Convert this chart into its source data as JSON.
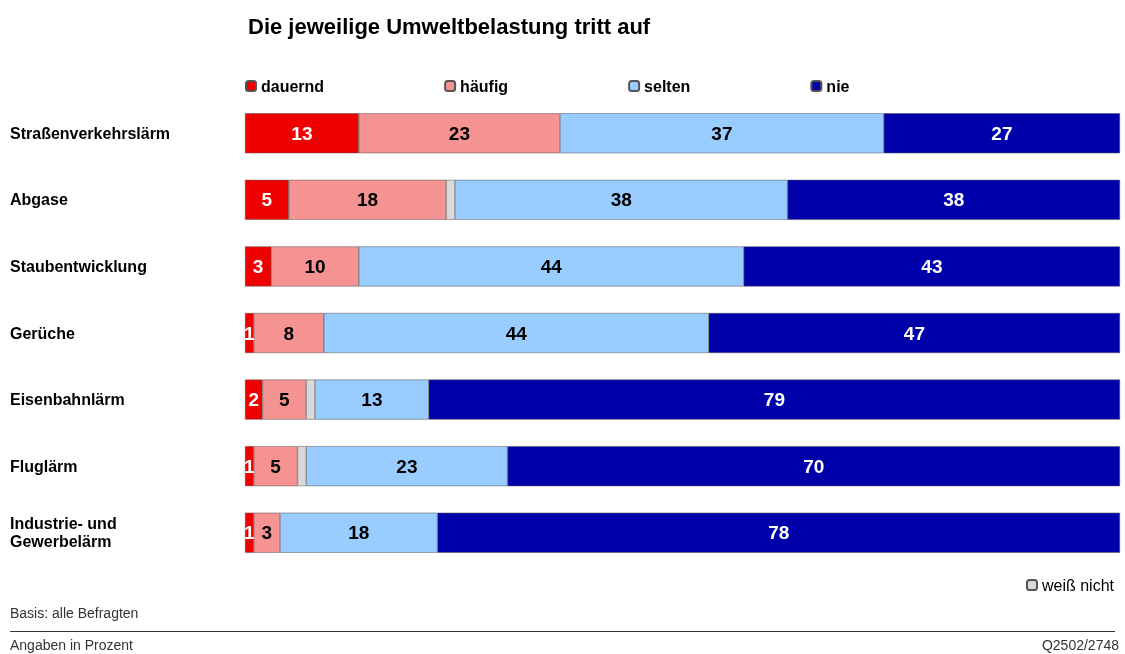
{
  "chart_data": {
    "type": "bar",
    "orientation": "horizontal",
    "stacked": true,
    "title": "Die jeweilige Umweltbelastung tritt auf",
    "categories": [
      "Straßenverkehrslärm",
      "Abgase",
      "Staubentwicklung",
      "Gerüche",
      "Eisenbahnlärm",
      "Fluglärm",
      "Industrie- und Gewerbelärm"
    ],
    "series": [
      {
        "name": "dauernd",
        "color": "#ee0000",
        "values": [
          13,
          5,
          3,
          1,
          2,
          1,
          1
        ],
        "value_labels": [
          "13",
          "5",
          "3",
          "1",
          "2",
          "1",
          "1"
        ]
      },
      {
        "name": "häufig",
        "color": "#f59393",
        "values": [
          23,
          18,
          10,
          8,
          5,
          5,
          3
        ],
        "value_labels": [
          "23",
          "18",
          "10",
          "8",
          "5",
          "5",
          "3"
        ]
      },
      {
        "name": "weiß nicht",
        "color": "#d9d9d9",
        "values": [
          null,
          1,
          null,
          null,
          1,
          1,
          null
        ],
        "value_labels": [
          null,
          null,
          null,
          null,
          null,
          null,
          null
        ]
      },
      {
        "name": "selten",
        "color": "#99ccff",
        "values": [
          37,
          38,
          44,
          44,
          13,
          23,
          18
        ],
        "value_labels": [
          "37",
          "38",
          "44",
          "44",
          "13",
          "23",
          "18"
        ]
      },
      {
        "name": "nie",
        "color": "#0000aa",
        "values": [
          27,
          38,
          43,
          47,
          79,
          70,
          78
        ],
        "value_labels": [
          "27",
          "38",
          "43",
          "47",
          "79",
          "70",
          "78"
        ]
      }
    ],
    "xlim": [
      0,
      100
    ],
    "tick_labels": "y",
    "legend": "top",
    "annotations": [
      "Basis: alle Befragten",
      "Angaben in Prozent",
      "Q2502/2748"
    ]
  }
}
